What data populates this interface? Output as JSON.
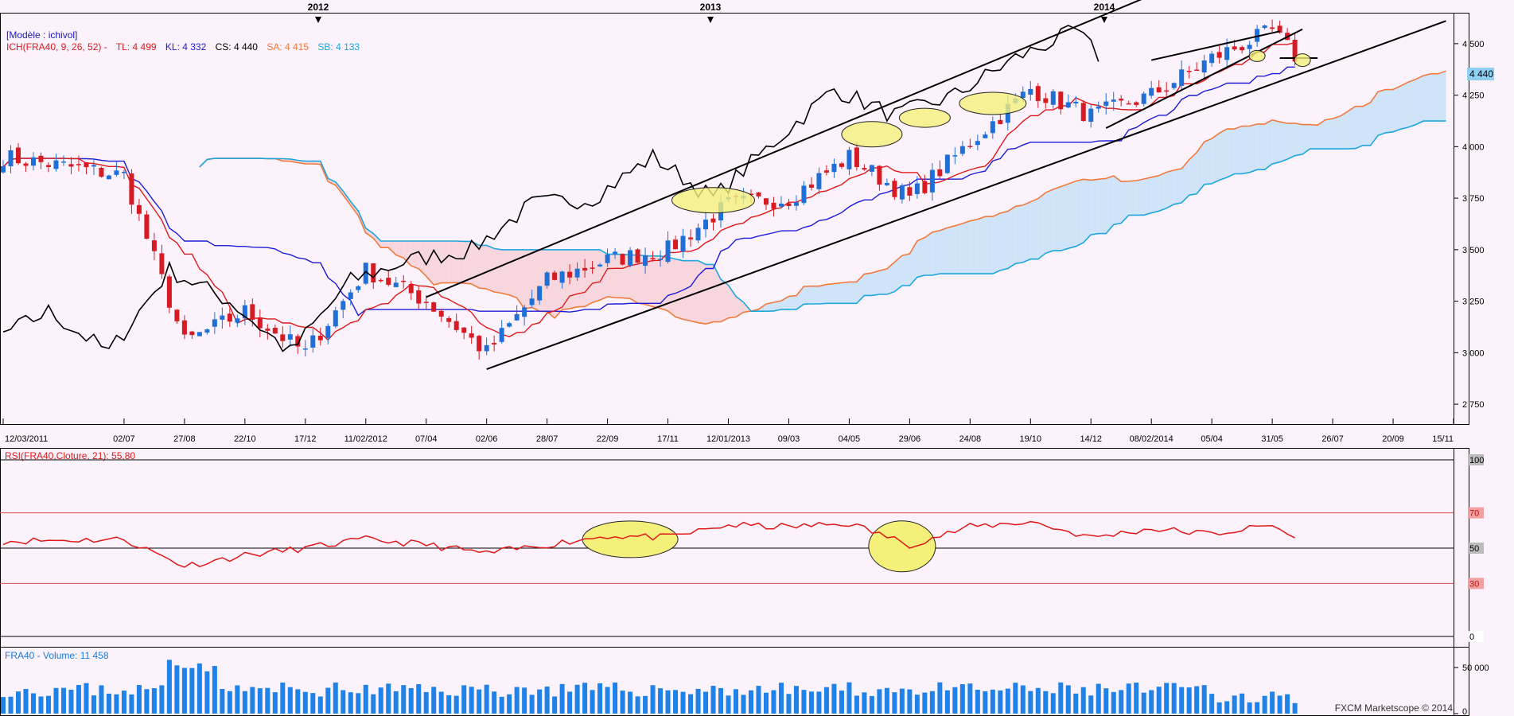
{
  "header": {
    "model_label": "[Modèle : ichivol]",
    "ichimoku": {
      "name": "ICH(FRA40, 9, 26, 52) -",
      "tl": "TL: 4 499",
      "kl": "KL: 4 332",
      "cs": "CS: 4 440",
      "sa": "SA: 4 415",
      "sb": "SB: 4 133"
    },
    "years": [
      "2012",
      "2013",
      "2014"
    ]
  },
  "colors": {
    "background": "#fcf2fc",
    "up": "#1f6fd6",
    "down": "#d81a22",
    "tenkan": "#e01818",
    "kijun": "#1c1cd8",
    "chikou": "#000000",
    "span_a": "#f07a3c",
    "span_b": "#1ca6dc",
    "cloud_bull": "#cfe4f8",
    "cloud_bear": "#f8d6de",
    "rsi": "#e01818",
    "volume": "#1f82e8",
    "highlight": "#f4f07a"
  },
  "price_axis": {
    "ticks": [
      "4 500",
      "4 250",
      "4 000",
      "3 750",
      "3 500",
      "3 250",
      "3 000",
      "2 750"
    ],
    "current": "4 440"
  },
  "x_axis": {
    "labels": [
      "12/03/2011",
      "02/07",
      "27/08",
      "22/10",
      "17/12",
      "11/02/2012",
      "07/04",
      "02/06",
      "28/07",
      "22/09",
      "17/11",
      "12/01/2013",
      "09/03",
      "04/05",
      "29/06",
      "24/08",
      "19/10",
      "14/12",
      "08/02/2014",
      "05/04",
      "31/05",
      "26/07",
      "20/09",
      "15/11"
    ]
  },
  "rsi_panel": {
    "title": "RSI(FRA40,Cloture, 21): 55,80",
    "ticks": [
      "100",
      "70",
      "50",
      "30",
      "0"
    ]
  },
  "volume_panel": {
    "title": "FRA40 - Volume: 11 458",
    "ticks": [
      "50 000",
      "0"
    ]
  },
  "watermark": "FXCM Marketscope © 2014",
  "chart_data": {
    "type": "candlestick",
    "instrument": "FRA40",
    "timeframe": "weekly",
    "x_range": [
      "2011-03-12",
      "2014-11-15"
    ],
    "price_ylim": [
      2650,
      4650
    ],
    "price_keypoints": [
      {
        "date": "2011-03-12",
        "close": 3950
      },
      {
        "date": "2011-07-02",
        "close": 3860
      },
      {
        "date": "2011-08-27",
        "close": 3050
      },
      {
        "date": "2011-10-22",
        "close": 3200
      },
      {
        "date": "2011-12-17",
        "close": 3000
      },
      {
        "date": "2012-02-11",
        "close": 3400
      },
      {
        "date": "2012-04-07",
        "close": 3250
      },
      {
        "date": "2012-06-02",
        "close": 3000
      },
      {
        "date": "2012-07-28",
        "close": 3350
      },
      {
        "date": "2012-09-22",
        "close": 3450
      },
      {
        "date": "2012-11-17",
        "close": 3500
      },
      {
        "date": "2013-01-12",
        "close": 3720
      },
      {
        "date": "2013-03-09",
        "close": 3750
      },
      {
        "date": "2013-05-04",
        "close": 3950
      },
      {
        "date": "2013-06-29",
        "close": 3750
      },
      {
        "date": "2013-08-24",
        "close": 4020
      },
      {
        "date": "2013-10-19",
        "close": 4280
      },
      {
        "date": "2013-12-14",
        "close": 4150
      },
      {
        "date": "2014-02-08",
        "close": 4250
      },
      {
        "date": "2014-04-05",
        "close": 4430
      },
      {
        "date": "2014-05-31",
        "close": 4560
      },
      {
        "date": "2014-06-21",
        "close": 4440
      }
    ],
    "indicators": {
      "tenkan": 4499,
      "kijun": 4332,
      "chikou": 4440,
      "senkou_a": 4415,
      "senkou_b": 4133
    },
    "rsi": {
      "period": 21,
      "last": 55.8,
      "ylim": [
        0,
        100
      ],
      "levels": [
        30,
        50,
        70
      ],
      "keypoints": [
        {
          "date": "2011-03-12",
          "value": 54
        },
        {
          "date": "2011-07-02",
          "value": 55
        },
        {
          "date": "2011-08-27",
          "value": 40
        },
        {
          "date": "2011-10-22",
          "value": 46
        },
        {
          "date": "2011-12-17",
          "value": 50
        },
        {
          "date": "2012-02-11",
          "value": 55
        },
        {
          "date": "2012-04-07",
          "value": 52
        },
        {
          "date": "2012-06-02",
          "value": 47
        },
        {
          "date": "2012-07-28",
          "value": 52
        },
        {
          "date": "2012-09-22",
          "value": 57
        },
        {
          "date": "2012-11-17",
          "value": 56
        },
        {
          "date": "2013-01-12",
          "value": 63
        },
        {
          "date": "2013-03-09",
          "value": 62
        },
        {
          "date": "2013-05-04",
          "value": 64
        },
        {
          "date": "2013-06-29",
          "value": 52
        },
        {
          "date": "2013-08-24",
          "value": 62
        },
        {
          "date": "2013-10-19",
          "value": 65
        },
        {
          "date": "2013-12-14",
          "value": 56
        },
        {
          "date": "2014-02-08",
          "value": 61
        },
        {
          "date": "2014-04-05",
          "value": 58
        },
        {
          "date": "2014-05-31",
          "value": 63
        },
        {
          "date": "2014-06-21",
          "value": 55.8
        }
      ]
    },
    "volume": {
      "last": 11458,
      "ylim": [
        0,
        70000
      ]
    }
  }
}
